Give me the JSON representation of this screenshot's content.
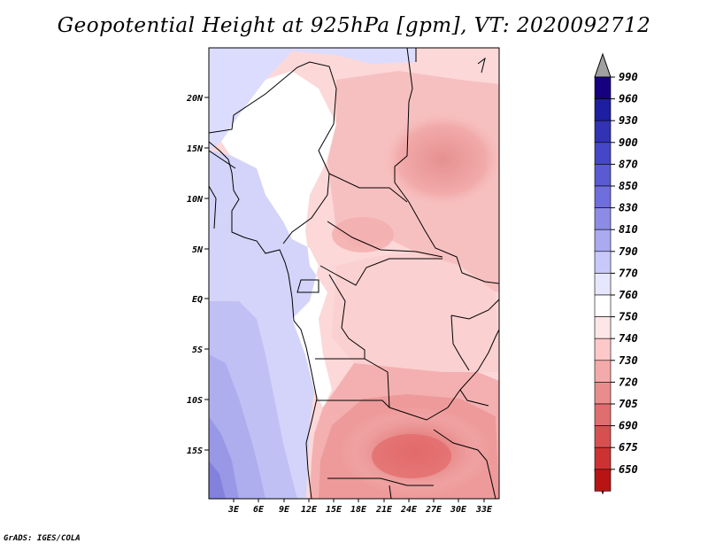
{
  "title": "Geopotential Height at 925hPa [gpm], VT: 2020092712",
  "credit": "GrADS: IGES/COLA",
  "map": {
    "region": "Central Africa",
    "lat_labels": [
      "20N",
      "15N",
      "10N",
      "5N",
      "EQ",
      "5S",
      "10S",
      "15S"
    ],
    "lon_labels": [
      "3E",
      "6E",
      "9E",
      "12E",
      "15E",
      "18E",
      "21E",
      "24E",
      "27E",
      "30E",
      "33E"
    ]
  },
  "colorbar": {
    "labels": [
      "990",
      "960",
      "930",
      "900",
      "870",
      "850",
      "830",
      "810",
      "790",
      "770",
      "760",
      "750",
      "740",
      "730",
      "720",
      "705",
      "690",
      "675",
      "650"
    ],
    "colors": [
      "#160080",
      "#1e1ea0",
      "#3232b4",
      "#4646c8",
      "#5a5ad2",
      "#6e6edc",
      "#8c8ce6",
      "#aaaaf0",
      "#c8c8fa",
      "#e6e6ff",
      "#ffffff",
      "#ffe6e6",
      "#ffc8c8",
      "#f5aaaa",
      "#eb8c8c",
      "#e16e6e",
      "#d75050",
      "#cd3232",
      "#b91414"
    ]
  }
}
